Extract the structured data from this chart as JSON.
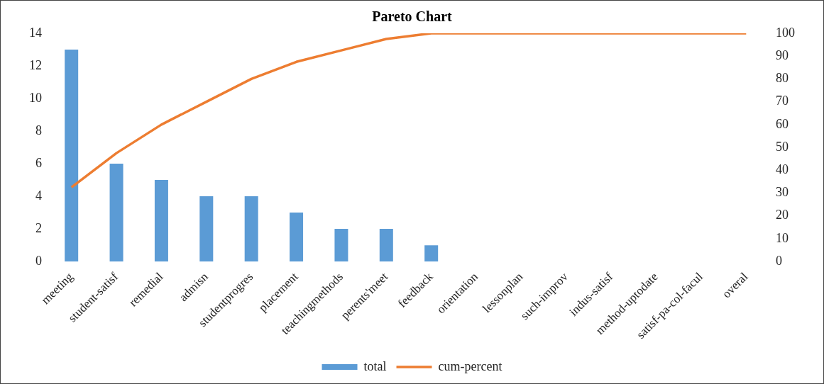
{
  "chart_data": {
    "type": "bar",
    "title": "Pareto Chart",
    "categories": [
      "meeting",
      "student-satisf",
      "remedial",
      "admisn",
      "studentprogres",
      "placement",
      "teachingmethods",
      "perents'meet",
      "feedback",
      "orientation",
      "lessonplan",
      "such-improv",
      "indus-satisf",
      "method-uptodate",
      "satisf-pa-col-facul",
      "overal"
    ],
    "series": [
      {
        "name": "total",
        "color": "#5b9bd5",
        "values": [
          13,
          6,
          5,
          4,
          4,
          3,
          2,
          2,
          1,
          0,
          0,
          0,
          0,
          0,
          0,
          0
        ]
      },
      {
        "name": "cum-percent",
        "type": "line",
        "axis": "y2",
        "color": "#ed7d31",
        "values": [
          32.5,
          47.5,
          60,
          70,
          80,
          87.5,
          92.5,
          97.5,
          100,
          100,
          100,
          100,
          100,
          100,
          100,
          100
        ]
      }
    ],
    "ylim": [
      0,
      14
    ],
    "yticks": [
      0,
      2,
      4,
      6,
      8,
      10,
      12,
      14
    ],
    "y2lim": [
      0,
      100
    ],
    "y2ticks": [
      0,
      10,
      20,
      30,
      40,
      50,
      60,
      70,
      80,
      90,
      100
    ],
    "grid": false,
    "legend": "bottom",
    "marker": "none"
  }
}
